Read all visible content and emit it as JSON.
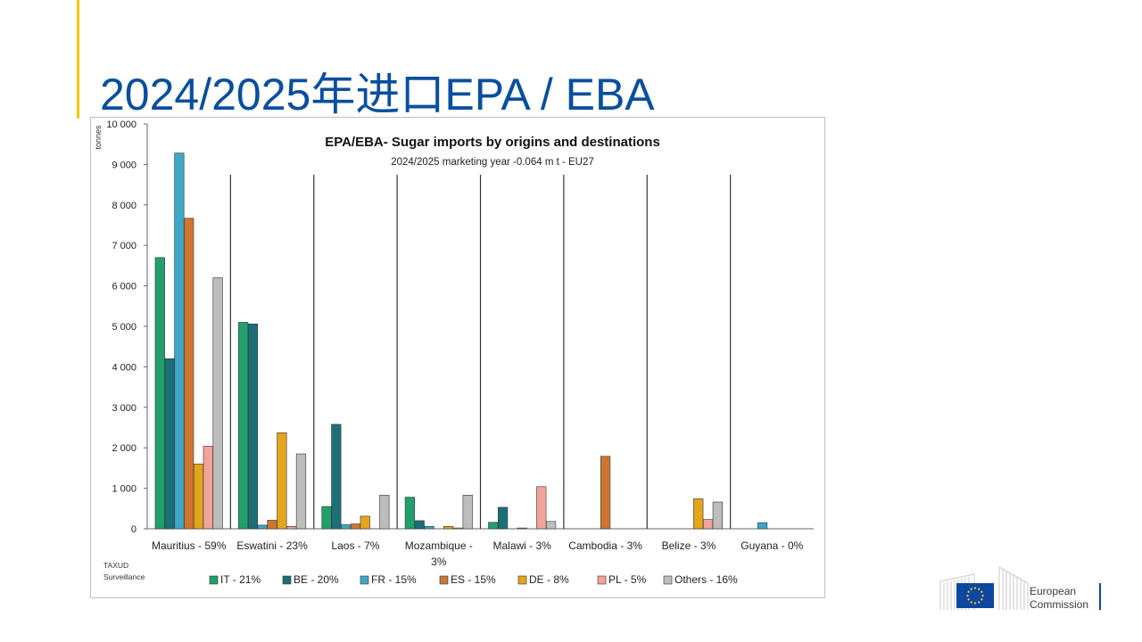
{
  "slide": {
    "title": "2024/2025年进口EPA / EBA"
  },
  "logo": {
    "line1": "European",
    "line2": "Commission"
  },
  "chart_data": {
    "type": "bar",
    "title": "EPA/EBA- Sugar imports by origins and destinations",
    "subtitle": "2024/2025 marketing year -0.064 m t - EU27",
    "ylabel": "tonnes",
    "ylim": [
      0,
      10000
    ],
    "yticks": [
      {
        "value": 0,
        "label": "0"
      },
      {
        "value": 1000,
        "label": "1 000"
      },
      {
        "value": 2000,
        "label": "2 000"
      },
      {
        "value": 3000,
        "label": "3 000"
      },
      {
        "value": 4000,
        "label": "4 000"
      },
      {
        "value": 5000,
        "label": "5 000"
      },
      {
        "value": 6000,
        "label": "6 000"
      },
      {
        "value": 7000,
        "label": "7 000"
      },
      {
        "value": 8000,
        "label": "8 000"
      },
      {
        "value": 9000,
        "label": "9 000"
      },
      {
        "value": 10000,
        "label": "10 000"
      }
    ],
    "categories": [
      [
        "Mauritius - 59%"
      ],
      [
        "Eswatini - 23%"
      ],
      [
        "Laos - 7%"
      ],
      [
        "Mozambique -",
        "3%"
      ],
      [
        "Malawi - 3%"
      ],
      [
        "Cambodia - 3%"
      ],
      [
        "Belize - 3%"
      ],
      [
        "Guyana - 0%"
      ]
    ],
    "series": [
      {
        "name": "IT - 21%",
        "color": "#22a06b",
        "values": [
          6700,
          5100,
          550,
          780,
          160,
          0,
          0,
          0
        ]
      },
      {
        "name": "BE - 20%",
        "color": "#1c6f78",
        "values": [
          4200,
          5060,
          2580,
          200,
          530,
          0,
          0,
          0
        ]
      },
      {
        "name": "FR - 15%",
        "color": "#3ea6c6",
        "values": [
          9280,
          90,
          100,
          60,
          0,
          0,
          0,
          150
        ]
      },
      {
        "name": "ES - 15%",
        "color": "#cd7632",
        "values": [
          7670,
          210,
          120,
          0,
          20,
          1790,
          0,
          0
        ]
      },
      {
        "name": "DE - 8%",
        "color": "#e3a51b",
        "values": [
          1600,
          2370,
          310,
          60,
          0,
          0,
          740,
          0
        ]
      },
      {
        "name": "PL - 5%",
        "color": "#f0a49a",
        "values": [
          2040,
          60,
          0,
          20,
          1040,
          0,
          230,
          0
        ]
      },
      {
        "name": "Others - 16%",
        "color": "#bdbdbd",
        "values": [
          6200,
          1850,
          830,
          830,
          180,
          0,
          660,
          0
        ]
      }
    ],
    "source": [
      "TAXUD",
      "Surveillance"
    ],
    "grid": false,
    "legend_position": "bottom"
  }
}
